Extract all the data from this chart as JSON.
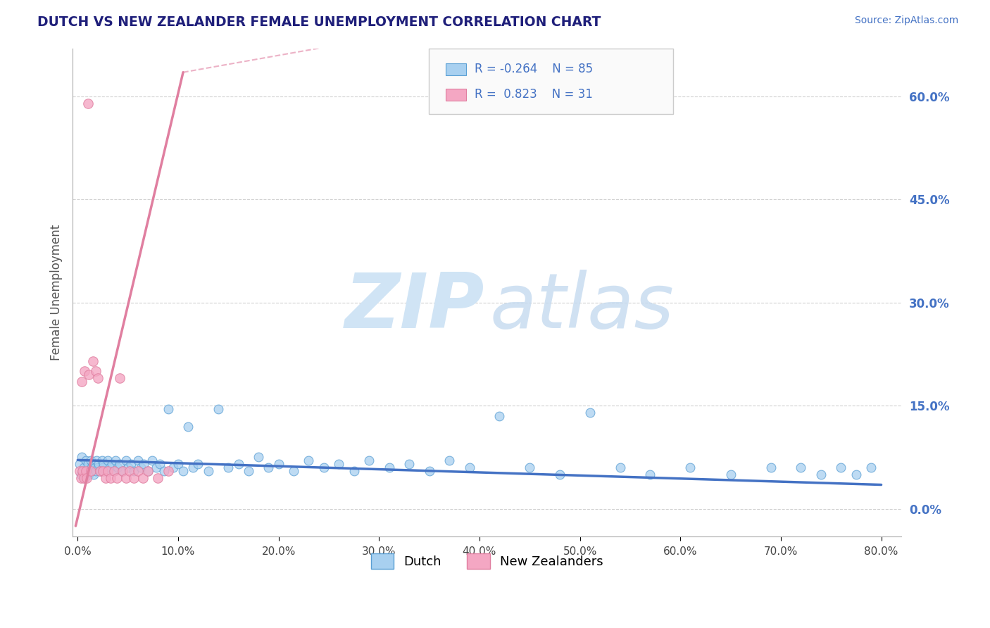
{
  "title": "DUTCH VS NEW ZEALANDER FEMALE UNEMPLOYMENT CORRELATION CHART",
  "source_text": "Source: ZipAtlas.com",
  "ylabel": "Female Unemployment",
  "xlim": [
    -0.005,
    0.82
  ],
  "ylim": [
    -0.04,
    0.67
  ],
  "xticks": [
    0.0,
    0.1,
    0.2,
    0.3,
    0.4,
    0.5,
    0.6,
    0.7,
    0.8
  ],
  "xtick_labels": [
    "0.0%",
    "10.0%",
    "20.0%",
    "30.0%",
    "40.0%",
    "50.0%",
    "60.0%",
    "70.0%",
    "80.0%"
  ],
  "ytick_positions_right": [
    0.0,
    0.15,
    0.3,
    0.45,
    0.6
  ],
  "ytick_labels_right": [
    "0.0%",
    "15.0%",
    "30.0%",
    "45.0%",
    "60.0%"
  ],
  "dutch_color": "#A8D0F0",
  "dutch_edge_color": "#5A9FD4",
  "nz_color": "#F4A7C3",
  "nz_edge_color": "#E07FA0",
  "trend_dutch_color": "#4472C4",
  "trend_nz_color": "#E07FA0",
  "background_color": "#FFFFFF",
  "grid_color": "#CCCCCC",
  "title_color": "#1F1F7A",
  "right_tick_color": "#4472C4",
  "legend_r_n_color": "#4472C4",
  "legend_dutch_label": "Dutch",
  "legend_nz_label": "New Zealanders",
  "dutch_x": [
    0.002,
    0.003,
    0.004,
    0.005,
    0.006,
    0.007,
    0.008,
    0.009,
    0.01,
    0.011,
    0.012,
    0.013,
    0.014,
    0.015,
    0.016,
    0.017,
    0.018,
    0.019,
    0.02,
    0.021,
    0.022,
    0.024,
    0.025,
    0.026,
    0.028,
    0.03,
    0.032,
    0.034,
    0.036,
    0.038,
    0.04,
    0.042,
    0.045,
    0.048,
    0.05,
    0.053,
    0.056,
    0.06,
    0.063,
    0.066,
    0.07,
    0.074,
    0.078,
    0.082,
    0.086,
    0.09,
    0.095,
    0.1,
    0.105,
    0.11,
    0.115,
    0.12,
    0.13,
    0.14,
    0.15,
    0.16,
    0.17,
    0.18,
    0.19,
    0.2,
    0.215,
    0.23,
    0.245,
    0.26,
    0.275,
    0.29,
    0.31,
    0.33,
    0.35,
    0.37,
    0.39,
    0.42,
    0.45,
    0.48,
    0.51,
    0.54,
    0.57,
    0.61,
    0.65,
    0.69,
    0.72,
    0.74,
    0.76,
    0.775,
    0.79
  ],
  "dutch_y": [
    0.065,
    0.05,
    0.075,
    0.055,
    0.06,
    0.045,
    0.07,
    0.055,
    0.065,
    0.05,
    0.055,
    0.07,
    0.06,
    0.065,
    0.05,
    0.06,
    0.055,
    0.07,
    0.06,
    0.065,
    0.055,
    0.07,
    0.06,
    0.065,
    0.055,
    0.07,
    0.06,
    0.065,
    0.055,
    0.07,
    0.06,
    0.065,
    0.055,
    0.07,
    0.06,
    0.065,
    0.055,
    0.07,
    0.06,
    0.065,
    0.055,
    0.07,
    0.06,
    0.065,
    0.055,
    0.145,
    0.06,
    0.065,
    0.055,
    0.12,
    0.06,
    0.065,
    0.055,
    0.145,
    0.06,
    0.065,
    0.055,
    0.075,
    0.06,
    0.065,
    0.055,
    0.07,
    0.06,
    0.065,
    0.055,
    0.07,
    0.06,
    0.065,
    0.055,
    0.07,
    0.06,
    0.135,
    0.06,
    0.05,
    0.14,
    0.06,
    0.05,
    0.06,
    0.05,
    0.06,
    0.06,
    0.05,
    0.06,
    0.05,
    0.06
  ],
  "nz_x": [
    0.002,
    0.003,
    0.004,
    0.005,
    0.006,
    0.007,
    0.008,
    0.009,
    0.01,
    0.011,
    0.013,
    0.015,
    0.018,
    0.02,
    0.022,
    0.025,
    0.028,
    0.03,
    0.033,
    0.036,
    0.039,
    0.042,
    0.045,
    0.048,
    0.052,
    0.056,
    0.06,
    0.065,
    0.07,
    0.08,
    0.09
  ],
  "nz_y": [
    0.055,
    0.045,
    0.185,
    0.055,
    0.045,
    0.2,
    0.055,
    0.045,
    0.59,
    0.195,
    0.055,
    0.215,
    0.2,
    0.19,
    0.055,
    0.055,
    0.045,
    0.055,
    0.045,
    0.055,
    0.045,
    0.19,
    0.055,
    0.045,
    0.055,
    0.045,
    0.055,
    0.045,
    0.055,
    0.045,
    0.055
  ],
  "trend_dutch_x0": 0.0,
  "trend_dutch_x1": 0.8,
  "trend_dutch_y0": 0.071,
  "trend_dutch_y1": 0.035,
  "trend_nz_x0": -0.002,
  "trend_nz_x1": 0.105,
  "trend_nz_y0": -0.025,
  "trend_nz_y1": 0.635,
  "trend_nz_dashed_x0": 0.105,
  "trend_nz_dashed_x1": 0.24,
  "trend_nz_dashed_y0": 0.635,
  "trend_nz_dashed_y1": 0.67
}
